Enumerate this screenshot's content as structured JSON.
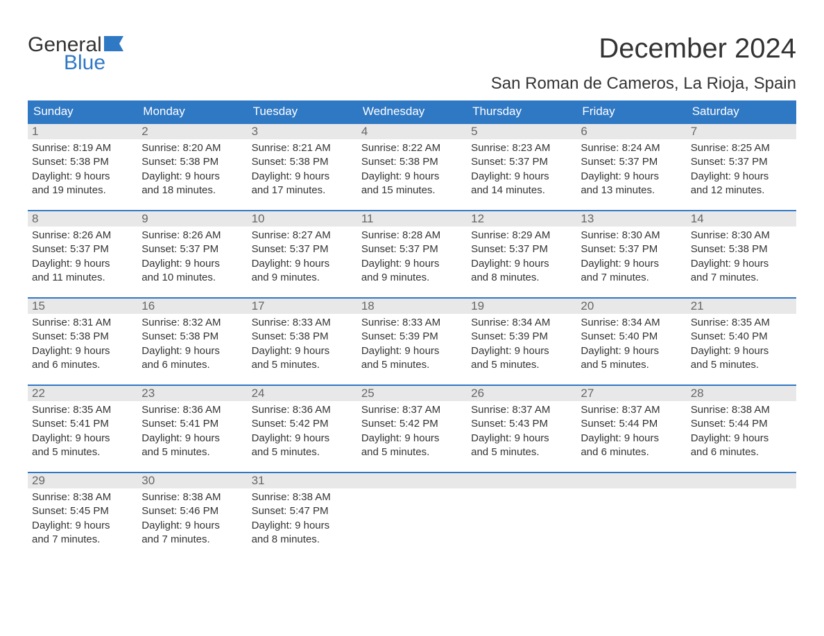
{
  "logo": {
    "text_general": "General",
    "text_blue": "Blue",
    "flag_color": "#2f78c4"
  },
  "title": "December 2024",
  "location": "San Roman de Cameros, La Rioja, Spain",
  "colors": {
    "header_bg": "#2f78c4",
    "header_text": "#ffffff",
    "daynum_bg": "#e8e8e8",
    "daynum_text": "#666666",
    "body_text": "#333333",
    "page_bg": "#ffffff"
  },
  "typography": {
    "title_fontsize": 40,
    "location_fontsize": 24,
    "weekday_fontsize": 17,
    "daynum_fontsize": 17,
    "body_fontsize": 15
  },
  "weekdays": [
    "Sunday",
    "Monday",
    "Tuesday",
    "Wednesday",
    "Thursday",
    "Friday",
    "Saturday"
  ],
  "weeks": [
    [
      {
        "n": "1",
        "sunrise": "Sunrise: 8:19 AM",
        "sunset": "Sunset: 5:38 PM",
        "d1": "Daylight: 9 hours",
        "d2": "and 19 minutes."
      },
      {
        "n": "2",
        "sunrise": "Sunrise: 8:20 AM",
        "sunset": "Sunset: 5:38 PM",
        "d1": "Daylight: 9 hours",
        "d2": "and 18 minutes."
      },
      {
        "n": "3",
        "sunrise": "Sunrise: 8:21 AM",
        "sunset": "Sunset: 5:38 PM",
        "d1": "Daylight: 9 hours",
        "d2": "and 17 minutes."
      },
      {
        "n": "4",
        "sunrise": "Sunrise: 8:22 AM",
        "sunset": "Sunset: 5:38 PM",
        "d1": "Daylight: 9 hours",
        "d2": "and 15 minutes."
      },
      {
        "n": "5",
        "sunrise": "Sunrise: 8:23 AM",
        "sunset": "Sunset: 5:37 PM",
        "d1": "Daylight: 9 hours",
        "d2": "and 14 minutes."
      },
      {
        "n": "6",
        "sunrise": "Sunrise: 8:24 AM",
        "sunset": "Sunset: 5:37 PM",
        "d1": "Daylight: 9 hours",
        "d2": "and 13 minutes."
      },
      {
        "n": "7",
        "sunrise": "Sunrise: 8:25 AM",
        "sunset": "Sunset: 5:37 PM",
        "d1": "Daylight: 9 hours",
        "d2": "and 12 minutes."
      }
    ],
    [
      {
        "n": "8",
        "sunrise": "Sunrise: 8:26 AM",
        "sunset": "Sunset: 5:37 PM",
        "d1": "Daylight: 9 hours",
        "d2": "and 11 minutes."
      },
      {
        "n": "9",
        "sunrise": "Sunrise: 8:26 AM",
        "sunset": "Sunset: 5:37 PM",
        "d1": "Daylight: 9 hours",
        "d2": "and 10 minutes."
      },
      {
        "n": "10",
        "sunrise": "Sunrise: 8:27 AM",
        "sunset": "Sunset: 5:37 PM",
        "d1": "Daylight: 9 hours",
        "d2": "and 9 minutes."
      },
      {
        "n": "11",
        "sunrise": "Sunrise: 8:28 AM",
        "sunset": "Sunset: 5:37 PM",
        "d1": "Daylight: 9 hours",
        "d2": "and 9 minutes."
      },
      {
        "n": "12",
        "sunrise": "Sunrise: 8:29 AM",
        "sunset": "Sunset: 5:37 PM",
        "d1": "Daylight: 9 hours",
        "d2": "and 8 minutes."
      },
      {
        "n": "13",
        "sunrise": "Sunrise: 8:30 AM",
        "sunset": "Sunset: 5:37 PM",
        "d1": "Daylight: 9 hours",
        "d2": "and 7 minutes."
      },
      {
        "n": "14",
        "sunrise": "Sunrise: 8:30 AM",
        "sunset": "Sunset: 5:38 PM",
        "d1": "Daylight: 9 hours",
        "d2": "and 7 minutes."
      }
    ],
    [
      {
        "n": "15",
        "sunrise": "Sunrise: 8:31 AM",
        "sunset": "Sunset: 5:38 PM",
        "d1": "Daylight: 9 hours",
        "d2": "and 6 minutes."
      },
      {
        "n": "16",
        "sunrise": "Sunrise: 8:32 AM",
        "sunset": "Sunset: 5:38 PM",
        "d1": "Daylight: 9 hours",
        "d2": "and 6 minutes."
      },
      {
        "n": "17",
        "sunrise": "Sunrise: 8:33 AM",
        "sunset": "Sunset: 5:38 PM",
        "d1": "Daylight: 9 hours",
        "d2": "and 5 minutes."
      },
      {
        "n": "18",
        "sunrise": "Sunrise: 8:33 AM",
        "sunset": "Sunset: 5:39 PM",
        "d1": "Daylight: 9 hours",
        "d2": "and 5 minutes."
      },
      {
        "n": "19",
        "sunrise": "Sunrise: 8:34 AM",
        "sunset": "Sunset: 5:39 PM",
        "d1": "Daylight: 9 hours",
        "d2": "and 5 minutes."
      },
      {
        "n": "20",
        "sunrise": "Sunrise: 8:34 AM",
        "sunset": "Sunset: 5:40 PM",
        "d1": "Daylight: 9 hours",
        "d2": "and 5 minutes."
      },
      {
        "n": "21",
        "sunrise": "Sunrise: 8:35 AM",
        "sunset": "Sunset: 5:40 PM",
        "d1": "Daylight: 9 hours",
        "d2": "and 5 minutes."
      }
    ],
    [
      {
        "n": "22",
        "sunrise": "Sunrise: 8:35 AM",
        "sunset": "Sunset: 5:41 PM",
        "d1": "Daylight: 9 hours",
        "d2": "and 5 minutes."
      },
      {
        "n": "23",
        "sunrise": "Sunrise: 8:36 AM",
        "sunset": "Sunset: 5:41 PM",
        "d1": "Daylight: 9 hours",
        "d2": "and 5 minutes."
      },
      {
        "n": "24",
        "sunrise": "Sunrise: 8:36 AM",
        "sunset": "Sunset: 5:42 PM",
        "d1": "Daylight: 9 hours",
        "d2": "and 5 minutes."
      },
      {
        "n": "25",
        "sunrise": "Sunrise: 8:37 AM",
        "sunset": "Sunset: 5:42 PM",
        "d1": "Daylight: 9 hours",
        "d2": "and 5 minutes."
      },
      {
        "n": "26",
        "sunrise": "Sunrise: 8:37 AM",
        "sunset": "Sunset: 5:43 PM",
        "d1": "Daylight: 9 hours",
        "d2": "and 5 minutes."
      },
      {
        "n": "27",
        "sunrise": "Sunrise: 8:37 AM",
        "sunset": "Sunset: 5:44 PM",
        "d1": "Daylight: 9 hours",
        "d2": "and 6 minutes."
      },
      {
        "n": "28",
        "sunrise": "Sunrise: 8:38 AM",
        "sunset": "Sunset: 5:44 PM",
        "d1": "Daylight: 9 hours",
        "d2": "and 6 minutes."
      }
    ],
    [
      {
        "n": "29",
        "sunrise": "Sunrise: 8:38 AM",
        "sunset": "Sunset: 5:45 PM",
        "d1": "Daylight: 9 hours",
        "d2": "and 7 minutes."
      },
      {
        "n": "30",
        "sunrise": "Sunrise: 8:38 AM",
        "sunset": "Sunset: 5:46 PM",
        "d1": "Daylight: 9 hours",
        "d2": "and 7 minutes."
      },
      {
        "n": "31",
        "sunrise": "Sunrise: 8:38 AM",
        "sunset": "Sunset: 5:47 PM",
        "d1": "Daylight: 9 hours",
        "d2": "and 8 minutes."
      },
      {
        "empty": true
      },
      {
        "empty": true
      },
      {
        "empty": true
      },
      {
        "empty": true
      }
    ]
  ]
}
